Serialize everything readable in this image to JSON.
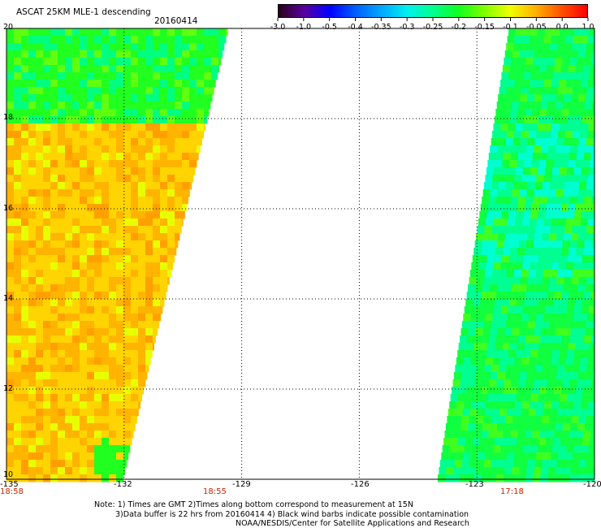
{
  "header": {
    "title": "ASCAT 25KM MLE-1 descending",
    "date": "20160414"
  },
  "colorbar": {
    "labels": [
      "-3.0",
      "-1.0",
      "-0.5",
      "-0.4",
      "-0.35",
      "-0.3",
      "-0.25",
      "-0.2",
      "-0.15",
      "-0.1",
      "-0.05",
      "0.0",
      "1.0"
    ],
    "colors": [
      "#2a0018",
      "#5a00a0",
      "#0000ff",
      "#0060ff",
      "#00a8ff",
      "#00f0f0",
      "#00ff90",
      "#10ff20",
      "#80ff00",
      "#f0ff00",
      "#ffb000",
      "#ff5000",
      "#ff0000"
    ]
  },
  "map": {
    "y_axis_labels": [
      "20",
      "18",
      "16",
      "14",
      "12",
      "10"
    ],
    "x_axis_labels": [
      "-135",
      "-132",
      "-129",
      "-126",
      "-123",
      "-120"
    ],
    "lat_range": [
      10,
      20
    ],
    "lon_range": [
      -135,
      -120
    ],
    "grid": true,
    "swaths": [
      {
        "name": "west-swath",
        "dominant_colors": [
          "#ffd400",
          "#ffb400",
          "#20ff20",
          "#00ff80"
        ]
      },
      {
        "name": "east-swath",
        "dominant_colors": [
          "#10ff40",
          "#00ff90",
          "#00ffd0"
        ]
      }
    ]
  },
  "times": {
    "t1": "18:58",
    "t2": "18:55",
    "t3": "17:18"
  },
  "notes": {
    "line1": "Note:  1) Times are GMT  2)Times along bottom correspond to measurement at 15N",
    "line2": "3)Data buffer is 22 hrs from 20160414  4) Black wind barbs indicate possible contamination",
    "line3": "NOAA/NESDIS/Center for Satellite Applications and Research"
  }
}
